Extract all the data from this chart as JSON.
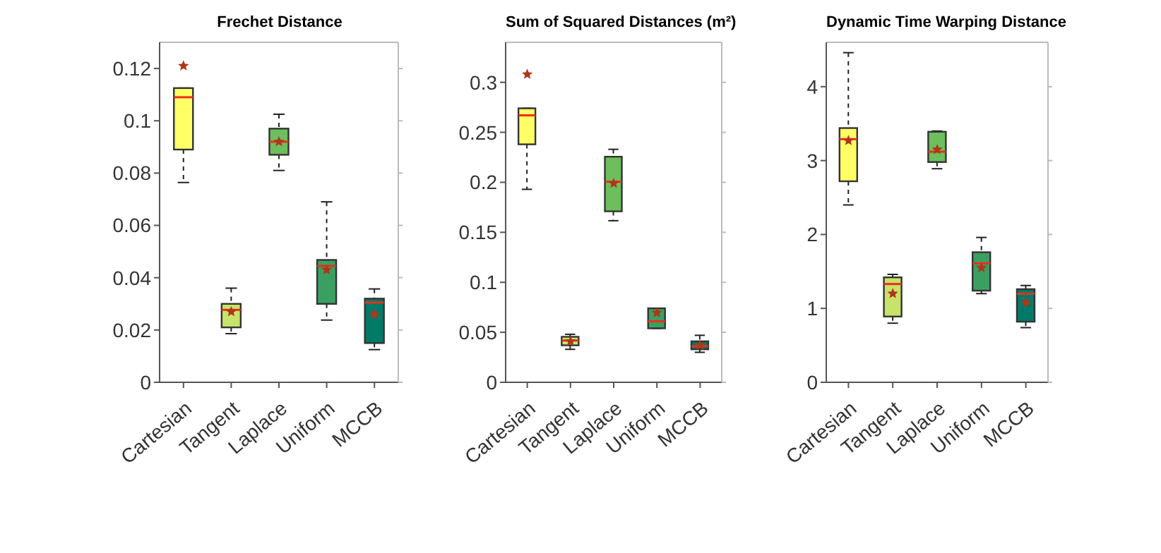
{
  "chart_data": [
    {
      "type": "box",
      "title": "Frechet Distance",
      "categories": [
        "Cartesian",
        "Tangent",
        "Laplace",
        "Uniform",
        "MCCB"
      ],
      "colors": [
        "#ffff66",
        "#c8e36a",
        "#6cbf5c",
        "#3c9f62",
        "#007a68"
      ],
      "marker": "star",
      "line_style": "dashed",
      "ylim": [
        0,
        0.13
      ],
      "yticks": [
        0,
        0.02,
        0.04,
        0.06,
        0.08,
        0.1,
        0.12
      ],
      "boxes": [
        {
          "low": 0.0764,
          "q1": 0.089,
          "median": 0.109,
          "q3": 0.1125,
          "high": 0.1125,
          "mean": 0.121
        },
        {
          "low": 0.0186,
          "q1": 0.021,
          "median": 0.0277,
          "q3": 0.03,
          "high": 0.036,
          "mean": 0.027
        },
        {
          "low": 0.081,
          "q1": 0.087,
          "median": 0.092,
          "q3": 0.097,
          "high": 0.1025,
          "mean": 0.092
        },
        {
          "low": 0.0238,
          "q1": 0.03,
          "median": 0.0445,
          "q3": 0.0468,
          "high": 0.069,
          "mean": 0.043
        },
        {
          "low": 0.0125,
          "q1": 0.015,
          "median": 0.0305,
          "q3": 0.032,
          "high": 0.0357,
          "mean": 0.026
        }
      ]
    },
    {
      "type": "box",
      "title": "Sum of Squared Distances (m²)",
      "categories": [
        "Cartesian",
        "Tangent",
        "Laplace",
        "Uniform",
        "MCCB"
      ],
      "colors": [
        "#ffff66",
        "#c8e36a",
        "#6cbf5c",
        "#3c9f62",
        "#007a68"
      ],
      "marker": "star",
      "line_style": "dashed",
      "ylim": [
        0,
        0.34
      ],
      "yticks": [
        0,
        0.05,
        0.1,
        0.15,
        0.2,
        0.25,
        0.3
      ],
      "boxes": [
        {
          "low": 0.193,
          "q1": 0.238,
          "median": 0.267,
          "q3": 0.274,
          "high": 0.274,
          "mean": 0.308
        },
        {
          "low": 0.033,
          "q1": 0.037,
          "median": 0.0418,
          "q3": 0.0455,
          "high": 0.048,
          "mean": 0.041
        },
        {
          "low": 0.1616,
          "q1": 0.171,
          "median": 0.2006,
          "q3": 0.2256,
          "high": 0.233,
          "mean": 0.199
        },
        {
          "low": 0.054,
          "q1": 0.054,
          "median": 0.061,
          "q3": 0.074,
          "high": 0.074,
          "mean": 0.0696
        },
        {
          "low": 0.03,
          "q1": 0.033,
          "median": 0.036,
          "q3": 0.041,
          "high": 0.047,
          "mean": 0.037
        }
      ]
    },
    {
      "type": "box",
      "title": "Dynamic Time Warping Distance",
      "categories": [
        "Cartesian",
        "Tangent",
        "Laplace",
        "Uniform",
        "MCCB"
      ],
      "colors": [
        "#ffff66",
        "#c8e36a",
        "#6cbf5c",
        "#3c9f62",
        "#007a68"
      ],
      "marker": "star",
      "line_style": "dashed",
      "ylim": [
        0,
        4.6
      ],
      "yticks": [
        0,
        1,
        2,
        3,
        4
      ],
      "boxes": [
        {
          "low": 2.4,
          "q1": 2.72,
          "median": 3.29,
          "q3": 3.44,
          "high": 4.46,
          "mean": 3.27
        },
        {
          "low": 0.8,
          "q1": 0.89,
          "median": 1.33,
          "q3": 1.42,
          "high": 1.46,
          "mean": 1.2
        },
        {
          "low": 2.89,
          "q1": 2.98,
          "median": 3.12,
          "q3": 3.39,
          "high": 3.4,
          "mean": 3.15
        },
        {
          "low": 1.2,
          "q1": 1.24,
          "median": 1.61,
          "q3": 1.76,
          "high": 1.96,
          "mean": 1.55
        },
        {
          "low": 0.74,
          "q1": 0.82,
          "median": 1.2,
          "q3": 1.26,
          "high": 1.31,
          "mean": 1.08
        }
      ]
    }
  ]
}
